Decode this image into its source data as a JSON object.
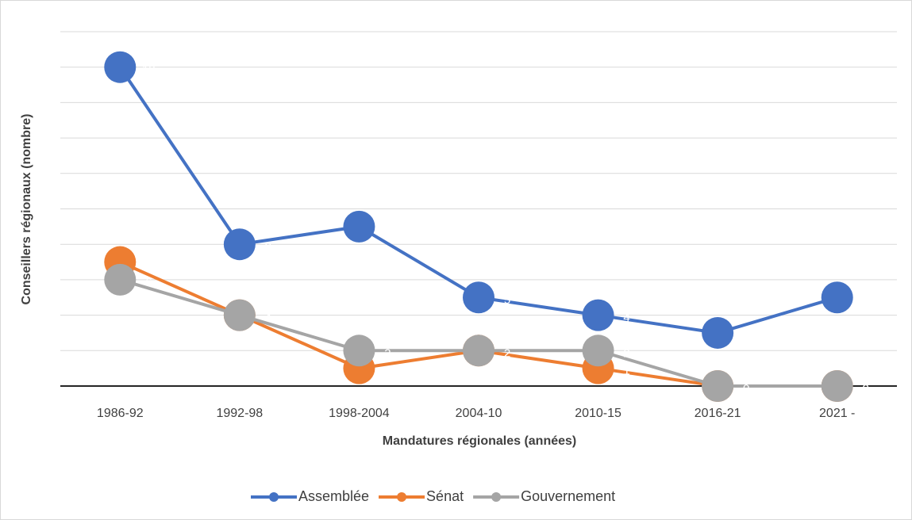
{
  "chart_data": {
    "type": "line",
    "x_label": "Mandatures régionales (années)",
    "y_label": "Conseillers régionaux (nombre)",
    "categories": [
      "1986-92",
      "1992-98",
      "1998-2004",
      "2004-10",
      "2010-15",
      "2016-21",
      "2021 -"
    ],
    "series": [
      {
        "name": "Assemblée",
        "color": "#4472c4",
        "values": [
          18,
          8,
          9,
          5,
          4,
          3,
          5
        ]
      },
      {
        "name": "Sénat",
        "color": "#ed7d31",
        "values": [
          7,
          4,
          1,
          2,
          1,
          0,
          0
        ]
      },
      {
        "name": "Gouvernement",
        "color": "#a5a5a5",
        "values": [
          6,
          4,
          2,
          2,
          2,
          0,
          0
        ]
      }
    ],
    "ylim": [
      0,
      20
    ],
    "yticks": [
      0,
      2,
      4,
      6,
      8,
      10,
      12,
      14,
      16,
      18,
      20
    ],
    "grid": true,
    "legend": "bottom"
  }
}
